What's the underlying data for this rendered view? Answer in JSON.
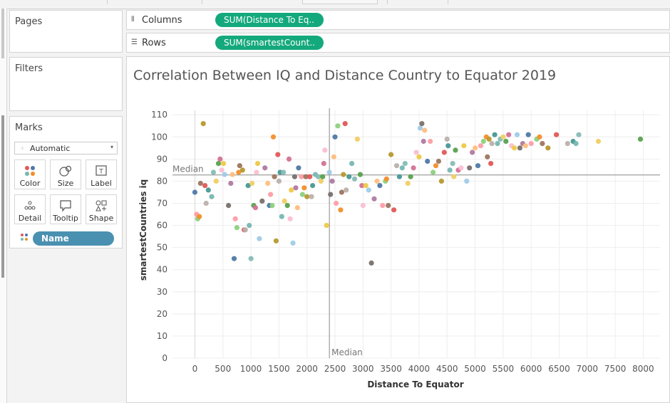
{
  "shelves": {
    "columns": {
      "label": "Columns",
      "pill": "SUM(Distance To Eq.."
    },
    "rows": {
      "label": "Rows",
      "pill": "SUM(smartestCount.."
    }
  },
  "cards": {
    "pages": "Pages",
    "filters": "Filters",
    "marks": {
      "title": "Marks",
      "mark_type": "Automatic",
      "buttons": [
        "Color",
        "Size",
        "Label",
        "Detail",
        "Tooltip",
        "Shape"
      ],
      "field": "Name"
    }
  },
  "colors": {
    "accent_green": "#14a97c",
    "field_blue": "#4a90b0"
  },
  "chart_data": {
    "type": "scatter",
    "title": "Correlation Between IQ and Distance Country to Equator 2019",
    "xlabel": "Distance To Equator",
    "ylabel": "smartestCountries iq",
    "xlim": [
      -400,
      8300
    ],
    "ylim": [
      0,
      112
    ],
    "x_ticks": [
      0,
      500,
      1000,
      1500,
      2000,
      2500,
      3000,
      3500,
      4000,
      4500,
      5000,
      5500,
      6000,
      6500,
      7000,
      7500,
      8000
    ],
    "y_ticks": [
      0,
      10,
      20,
      30,
      40,
      50,
      60,
      70,
      80,
      90,
      100,
      110
    ],
    "grid": true,
    "reference_lines": {
      "x_median": 2400,
      "y_median": 82.8,
      "label": "Median"
    },
    "palette": [
      "#4e79a7",
      "#f28e2b",
      "#e15759",
      "#76b7b2",
      "#59a14f",
      "#edc948",
      "#b07aa1",
      "#ff9da7",
      "#9c755f",
      "#bab0ac",
      "#86bcb6",
      "#d37295",
      "#a0cbe8",
      "#ffbe7d",
      "#8cd17d",
      "#b6992d",
      "#499894",
      "#f1ce63",
      "#fabfd2",
      "#79706e"
    ],
    "points": [
      [
        0,
        75
      ],
      [
        30,
        65
      ],
      [
        50,
        63
      ],
      [
        80,
        64
      ],
      [
        100,
        79
      ],
      [
        150,
        106
      ],
      [
        180,
        78
      ],
      [
        200,
        70
      ],
      [
        240,
        76
      ],
      [
        300,
        73
      ],
      [
        330,
        84
      ],
      [
        380,
        80
      ],
      [
        420,
        88
      ],
      [
        450,
        90
      ],
      [
        480,
        85
      ],
      [
        510,
        88
      ],
      [
        530,
        83
      ],
      [
        600,
        69
      ],
      [
        640,
        79
      ],
      [
        670,
        83
      ],
      [
        700,
        45
      ],
      [
        720,
        63
      ],
      [
        750,
        59
      ],
      [
        780,
        84
      ],
      [
        800,
        87
      ],
      [
        850,
        85
      ],
      [
        880,
        58
      ],
      [
        900,
        58
      ],
      [
        950,
        78
      ],
      [
        970,
        60
      ],
      [
        1000,
        45
      ],
      [
        1020,
        79
      ],
      [
        1050,
        69
      ],
      [
        1080,
        68
      ],
      [
        1100,
        84
      ],
      [
        1120,
        88
      ],
      [
        1150,
        54
      ],
      [
        1200,
        71
      ],
      [
        1250,
        86
      ],
      [
        1300,
        79
      ],
      [
        1330,
        69
      ],
      [
        1350,
        74
      ],
      [
        1380,
        69
      ],
      [
        1400,
        100
      ],
      [
        1420,
        82
      ],
      [
        1450,
        53
      ],
      [
        1480,
        92
      ],
      [
        1500,
        80
      ],
      [
        1520,
        84
      ],
      [
        1550,
        64
      ],
      [
        1580,
        84
      ],
      [
        1600,
        71
      ],
      [
        1650,
        69
      ],
      [
        1680,
        90
      ],
      [
        1700,
        63
      ],
      [
        1720,
        76
      ],
      [
        1750,
        52
      ],
      [
        1780,
        82
      ],
      [
        1800,
        77
      ],
      [
        1830,
        68
      ],
      [
        1850,
        86
      ],
      [
        1900,
        82
      ],
      [
        1920,
        74
      ],
      [
        1950,
        77
      ],
      [
        1980,
        82
      ],
      [
        2000,
        73
      ],
      [
        2050,
        82
      ],
      [
        2080,
        73
      ],
      [
        2100,
        78
      ],
      [
        2150,
        83
      ],
      [
        2200,
        82
      ],
      [
        2250,
        80
      ],
      [
        2280,
        82
      ],
      [
        2300,
        88
      ],
      [
        2320,
        94
      ],
      [
        2350,
        60
      ],
      [
        2400,
        84
      ],
      [
        2420,
        74
      ],
      [
        2450,
        80
      ],
      [
        2480,
        91
      ],
      [
        2500,
        100
      ],
      [
        2520,
        70
      ],
      [
        2550,
        105
      ],
      [
        2600,
        67
      ],
      [
        2620,
        75
      ],
      [
        2650,
        83
      ],
      [
        2680,
        106
      ],
      [
        2700,
        76
      ],
      [
        2750,
        82
      ],
      [
        2800,
        88
      ],
      [
        2850,
        81
      ],
      [
        2900,
        99
      ],
      [
        2950,
        83
      ],
      [
        2980,
        78
      ],
      [
        3000,
        69
      ],
      [
        3050,
        78
      ],
      [
        3100,
        76
      ],
      [
        3150,
        43
      ],
      [
        3200,
        72
      ],
      [
        3250,
        80
      ],
      [
        3300,
        78
      ],
      [
        3350,
        69
      ],
      [
        3400,
        80
      ],
      [
        3420,
        81
      ],
      [
        3450,
        69
      ],
      [
        3500,
        92
      ],
      [
        3550,
        67
      ],
      [
        3600,
        87
      ],
      [
        3650,
        82
      ],
      [
        3700,
        86
      ],
      [
        3750,
        88
      ],
      [
        3800,
        79
      ],
      [
        3850,
        82
      ],
      [
        3900,
        86
      ],
      [
        3950,
        93
      ],
      [
        4000,
        91
      ],
      [
        4020,
        104
      ],
      [
        4050,
        106
      ],
      [
        4080,
        98
      ],
      [
        4100,
        103
      ],
      [
        4150,
        89
      ],
      [
        4200,
        98
      ],
      [
        4250,
        84
      ],
      [
        4300,
        87
      ],
      [
        4350,
        89
      ],
      [
        4400,
        80
      ],
      [
        4450,
        93
      ],
      [
        4500,
        99
      ],
      [
        4520,
        96
      ],
      [
        4550,
        85
      ],
      [
        4600,
        88
      ],
      [
        4620,
        82
      ],
      [
        4650,
        94
      ],
      [
        4700,
        85
      ],
      [
        4750,
        86
      ],
      [
        4800,
        96
      ],
      [
        4850,
        80
      ],
      [
        4900,
        86
      ],
      [
        4950,
        93
      ],
      [
        5000,
        95
      ],
      [
        5050,
        87
      ],
      [
        5100,
        96
      ],
      [
        5150,
        98
      ],
      [
        5200,
        100
      ],
      [
        5220,
        91
      ],
      [
        5250,
        99
      ],
      [
        5280,
        88
      ],
      [
        5300,
        97
      ],
      [
        5350,
        101
      ],
      [
        5400,
        97
      ],
      [
        5450,
        99
      ],
      [
        5500,
        100
      ],
      [
        5550,
        98
      ],
      [
        5600,
        101
      ],
      [
        5650,
        96
      ],
      [
        5700,
        95
      ],
      [
        5750,
        101
      ],
      [
        5800,
        95
      ],
      [
        5850,
        97
      ],
      [
        5900,
        96
      ],
      [
        5950,
        101
      ],
      [
        6000,
        97
      ],
      [
        6100,
        99
      ],
      [
        6150,
        100
      ],
      [
        6200,
        97
      ],
      [
        6300,
        95
      ],
      [
        6450,
        101
      ],
      [
        6650,
        97
      ],
      [
        6750,
        98
      ],
      [
        6800,
        97
      ],
      [
        6850,
        101
      ],
      [
        7200,
        98
      ],
      [
        7950,
        99
      ]
    ]
  }
}
